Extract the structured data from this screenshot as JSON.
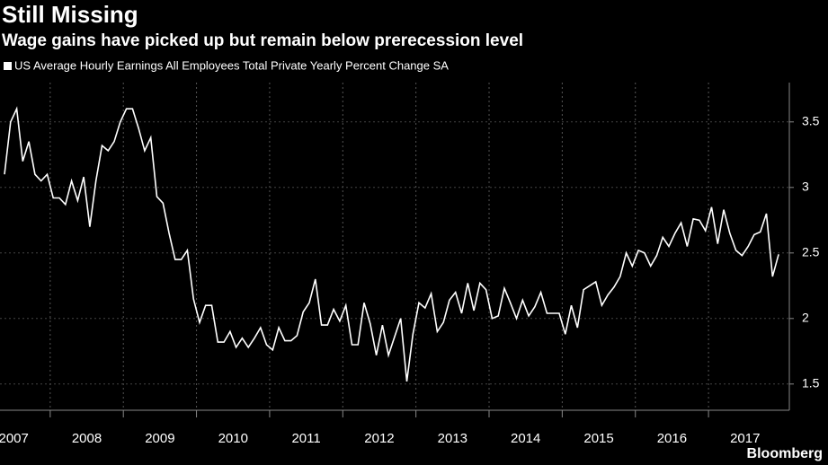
{
  "chart_data": {
    "type": "line",
    "title": "Still Missing",
    "subtitle": "Wage gains have picked up but remain below prerecession level",
    "source": "Bloomberg",
    "categories": [
      "2007",
      null,
      null,
      null,
      null,
      null,
      null,
      null,
      "2008",
      null,
      null,
      null,
      null,
      null,
      null,
      null,
      null,
      null,
      null,
      null,
      "2009",
      null,
      null,
      null,
      null,
      null,
      null,
      null,
      null,
      null,
      null,
      null,
      "2010",
      null,
      null,
      null,
      null,
      null,
      null,
      null,
      null,
      null,
      null,
      null,
      "2011",
      null,
      null,
      null,
      null,
      null,
      null,
      null,
      null,
      null,
      null,
      null,
      "2012",
      null,
      null,
      null,
      null,
      null,
      null,
      null,
      null,
      null,
      null,
      null,
      "2013",
      null,
      null,
      null,
      null,
      null,
      null,
      null,
      null,
      null,
      null,
      null,
      "2014",
      null,
      null,
      null,
      null,
      null,
      null,
      null,
      null,
      null,
      null,
      null,
      "2015",
      null,
      null,
      null,
      null,
      null,
      null,
      null,
      null,
      null,
      null,
      null,
      "2016",
      null,
      null,
      null,
      null,
      null,
      null,
      null,
      null,
      null,
      null,
      null,
      "2017",
      null,
      null,
      null,
      null,
      null,
      null,
      null,
      null,
      null,
      null,
      null
    ],
    "series": [
      {
        "name": "US Average Hourly Earnings All Employees Total Private Yearly Percent Change SA",
        "color": "#ffffff",
        "values": [
          3.1,
          3.5,
          3.6,
          3.2,
          3.35,
          3.1,
          3.05,
          3.1,
          2.92,
          2.92,
          2.87,
          3.05,
          2.9,
          3.08,
          2.7,
          3.05,
          3.32,
          3.28,
          3.35,
          3.5,
          3.6,
          3.6,
          3.45,
          3.28,
          3.38,
          2.93,
          2.88,
          2.65,
          2.45,
          2.45,
          2.52,
          2.15,
          1.97,
          2.1,
          2.1,
          1.82,
          1.82,
          1.9,
          1.78,
          1.85,
          1.78,
          1.85,
          1.93,
          1.8,
          1.76,
          1.93,
          1.83,
          1.83,
          1.87,
          2.05,
          2.12,
          2.3,
          1.95,
          1.95,
          2.07,
          1.98,
          2.1,
          1.8,
          1.8,
          2.12,
          1.96,
          1.72,
          1.95,
          1.72,
          1.86,
          2.0,
          1.52,
          1.88,
          2.12,
          2.08,
          2.19,
          1.9,
          1.97,
          2.14,
          2.2,
          2.04,
          2.27,
          2.06,
          2.27,
          2.22,
          2.0,
          2.02,
          2.23,
          2.12,
          2.0,
          2.14,
          2.02,
          2.09,
          2.2,
          2.04,
          2.04,
          2.04,
          1.88,
          2.1,
          1.93,
          2.22,
          2.25,
          2.28,
          2.1,
          2.18,
          2.24,
          2.32,
          2.5,
          2.4,
          2.52,
          2.5,
          2.4,
          2.48,
          2.62,
          2.55,
          2.65,
          2.73,
          2.55,
          2.76,
          2.75,
          2.67,
          2.85,
          2.57,
          2.83,
          2.65,
          2.52,
          2.48,
          2.55,
          2.64,
          2.66,
          2.8,
          2.32,
          2.49
        ]
      }
    ],
    "ylim": [
      1.3,
      3.8
    ],
    "yticks": [
      1.5,
      2,
      2.5,
      3,
      3.5
    ],
    "grid": true
  }
}
